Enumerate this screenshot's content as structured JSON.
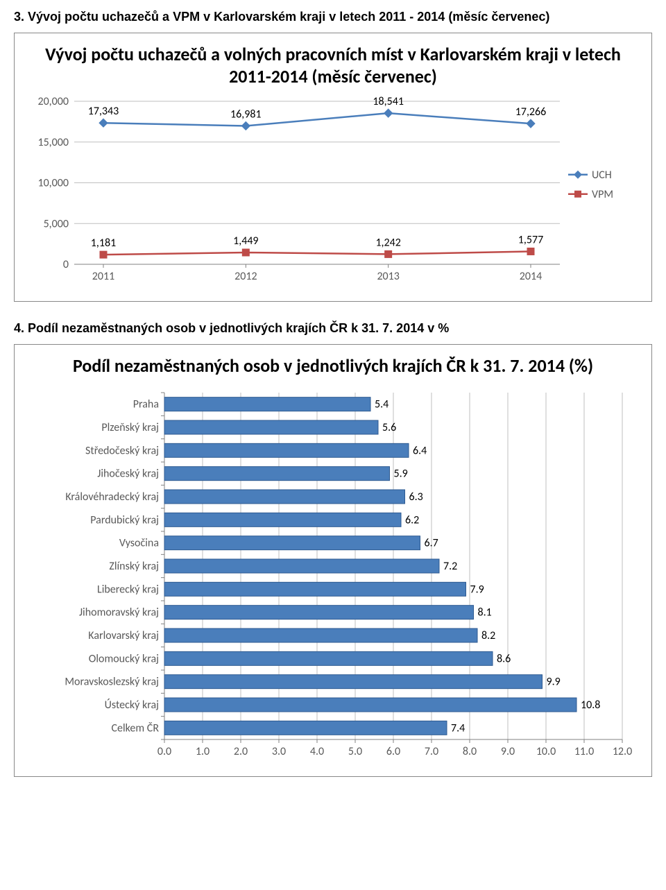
{
  "section1": {
    "heading": "3. Vývoj počtu uchazečů a VPM v Karlovarském kraji v letech 2011 - 2014 (měsíc červenec)"
  },
  "chart1": {
    "type": "line",
    "title": "Vývoj počtu uchazečů a volných pracovních míst v Karlovarském kraji v letech 2011-2014 (měsíc červenec)",
    "categories": [
      "2011",
      "2012",
      "2013",
      "2014"
    ],
    "series": [
      {
        "name": "UCH",
        "values": [
          17343,
          16981,
          18541,
          17266
        ],
        "color": "#4a7ebb",
        "marker": "diamond"
      },
      {
        "name": "VPM",
        "values": [
          1181,
          1449,
          1242,
          1577
        ],
        "color": "#be4b48",
        "marker": "square"
      }
    ],
    "data_labels": {
      "UCH": [
        "17,343",
        "16,981",
        "18,541",
        "17,266"
      ],
      "VPM": [
        "1,181",
        "1,449",
        "1,242",
        "1,577"
      ]
    },
    "ylim": [
      0,
      20000
    ],
    "ytick_step": 5000,
    "ytick_labels": [
      "0",
      "5,000",
      "10,000",
      "15,000",
      "20,000"
    ],
    "background_color": "#ffffff",
    "grid_color": "#bfbfbf",
    "axis_color": "#808080",
    "label_fontsize": 16,
    "title_fontsize": 26,
    "label_font": "Calibri, Arial, sans-serif"
  },
  "section2": {
    "heading": "4. Podíl nezaměstnaných osob v jednotlivých krajích ČR k 31. 7. 2014 v %"
  },
  "chart2": {
    "type": "bar-horizontal",
    "title": "Podíl nezaměstnaných osob v jednotlivých krajích ČR k 31. 7. 2014 (%)",
    "items": [
      {
        "label": "Praha",
        "value": 5.4
      },
      {
        "label": "Plzeňský kraj",
        "value": 5.6
      },
      {
        "label": "Středočeský kraj",
        "value": 6.4
      },
      {
        "label": "Jihočeský kraj",
        "value": 5.9
      },
      {
        "label": "Královéhradecký kraj",
        "value": 6.3
      },
      {
        "label": "Pardubický kraj",
        "value": 6.2
      },
      {
        "label": "Vysočina",
        "value": 6.7
      },
      {
        "label": "Zlínský kraj",
        "value": 7.2
      },
      {
        "label": "Liberecký kraj",
        "value": 7.9
      },
      {
        "label": "Jihomoravský kraj",
        "value": 8.1
      },
      {
        "label": "Karlovarský kraj",
        "value": 8.2
      },
      {
        "label": "Olomoucký kraj",
        "value": 8.6
      },
      {
        "label": "Moravskoslezský kraj",
        "value": 9.9
      },
      {
        "label": "Ústecký kraj",
        "value": 10.8
      },
      {
        "label": "Celkem ČR",
        "value": 7.4
      }
    ],
    "xlim": [
      0,
      12
    ],
    "xtick_step": 1,
    "xtick_labels": [
      "0.0",
      "1.0",
      "2.0",
      "3.0",
      "4.0",
      "5.0",
      "6.0",
      "7.0",
      "8.0",
      "9.0",
      "10.0",
      "11.0",
      "12.0"
    ],
    "bar_color": "#4a7ebb",
    "bar_border_color": "#2e5a91",
    "background_color": "#ffffff",
    "grid_color": "#bfbfbf",
    "axis_color": "#808080",
    "label_fontsize": 16,
    "title_fontsize": 26,
    "label_font": "Calibri, Arial, sans-serif",
    "bar_height_ratio": 0.6
  }
}
